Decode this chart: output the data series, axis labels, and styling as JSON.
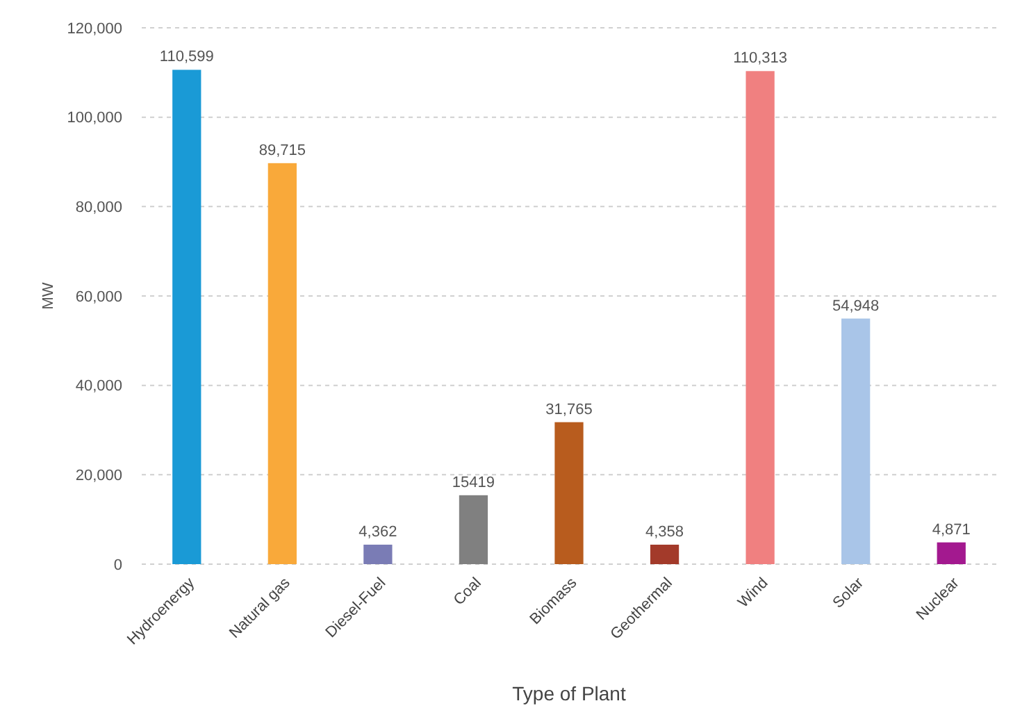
{
  "chart_data": {
    "type": "bar",
    "xlabel": "Type of Plant",
    "ylabel": "MW",
    "categories": [
      "Hydroenergy",
      "Natural gas",
      "Diesel-Fuel",
      "Coal",
      "Biomass",
      "Geothermal",
      "Wind",
      "Solar",
      "Nuclear"
    ],
    "values": [
      110599,
      89715,
      4362,
      15419,
      31765,
      4358,
      110313,
      54948,
      4871
    ],
    "value_labels": [
      "110,599",
      "89,715",
      "4,362",
      "15419",
      "31,765",
      "4,358",
      "110,313",
      "54,948",
      "4,871"
    ],
    "colors": [
      "#1a9ad6",
      "#f9a93a",
      "#7a7cb5",
      "#808080",
      "#b85c1e",
      "#a33a2a",
      "#f08080",
      "#a9c5e8",
      "#a3198f"
    ],
    "ylim": [
      0,
      120000
    ],
    "yticks": [
      {
        "value": 0,
        "label": "0"
      },
      {
        "value": 20000,
        "label": "20,000"
      },
      {
        "value": 40000,
        "label": "40,000"
      },
      {
        "value": 60000,
        "label": "60,000"
      },
      {
        "value": 80000,
        "label": "80,000"
      },
      {
        "value": 100000,
        "label": "100,000"
      },
      {
        "value": 120000,
        "label": "120,000"
      }
    ],
    "grid": "y"
  }
}
